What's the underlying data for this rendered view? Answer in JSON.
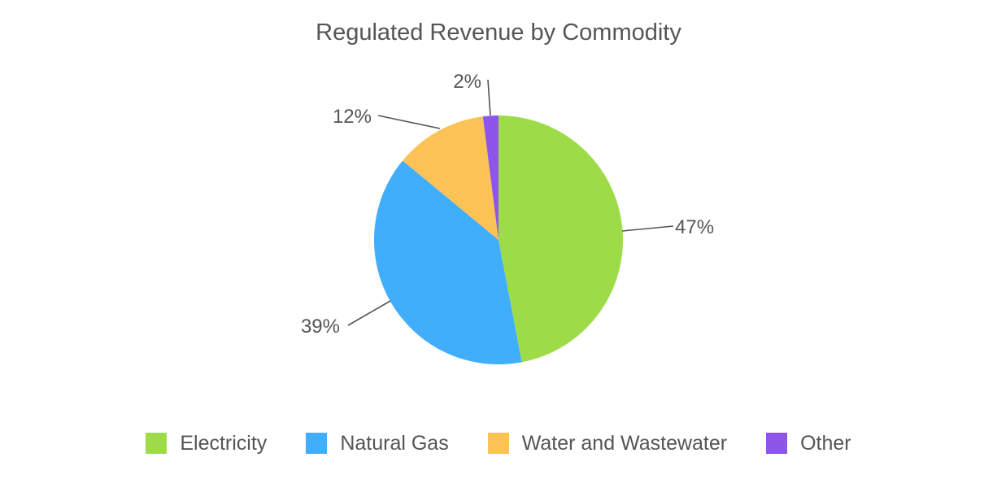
{
  "chart_data": {
    "type": "pie",
    "title": "Regulated Revenue by Commodity",
    "categories": [
      "Electricity",
      "Natural Gas",
      "Water and Wastewater",
      "Other"
    ],
    "values": [
      47,
      39,
      12,
      2
    ],
    "labels": [
      "47%",
      "39%",
      "12%",
      "2%"
    ],
    "colors": [
      "#9ddc48",
      "#41aefc",
      "#fbc255",
      "#8e55ea"
    ],
    "legend_position": "bottom",
    "start_angle": "12 o'clock, clockwise"
  }
}
